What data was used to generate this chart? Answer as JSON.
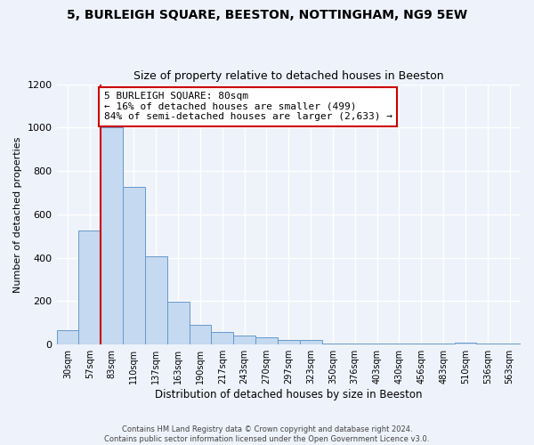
{
  "title": "5, BURLEIGH SQUARE, BEESTON, NOTTINGHAM, NG9 5EW",
  "subtitle": "Size of property relative to detached houses in Beeston",
  "xlabel": "Distribution of detached houses by size in Beeston",
  "ylabel": "Number of detached properties",
  "categories": [
    "30sqm",
    "57sqm",
    "83sqm",
    "110sqm",
    "137sqm",
    "163sqm",
    "190sqm",
    "217sqm",
    "243sqm",
    "270sqm",
    "297sqm",
    "323sqm",
    "350sqm",
    "376sqm",
    "403sqm",
    "430sqm",
    "456sqm",
    "483sqm",
    "510sqm",
    "536sqm",
    "563sqm"
  ],
  "values": [
    65,
    525,
    1000,
    725,
    405,
    198,
    90,
    60,
    42,
    35,
    20,
    20,
    5,
    5,
    5,
    5,
    5,
    5,
    10,
    5,
    5
  ],
  "bar_color": "#c5d9f0",
  "bar_edge_color": "#6699cc",
  "annotation_text": "5 BURLEIGH SQUARE: 80sqm\n← 16% of detached houses are smaller (499)\n84% of semi-detached houses are larger (2,633) →",
  "annotation_box_color": "#ffffff",
  "annotation_box_edge": "#cc0000",
  "vline_color": "#cc0000",
  "footer_line1": "Contains HM Land Registry data © Crown copyright and database right 2024.",
  "footer_line2": "Contains public sector information licensed under the Open Government Licence v3.0.",
  "ylim": [
    0,
    1200
  ],
  "background_color": "#eef2fa",
  "grid_color": "#ffffff",
  "title_fontsize": 10,
  "subtitle_fontsize": 9
}
